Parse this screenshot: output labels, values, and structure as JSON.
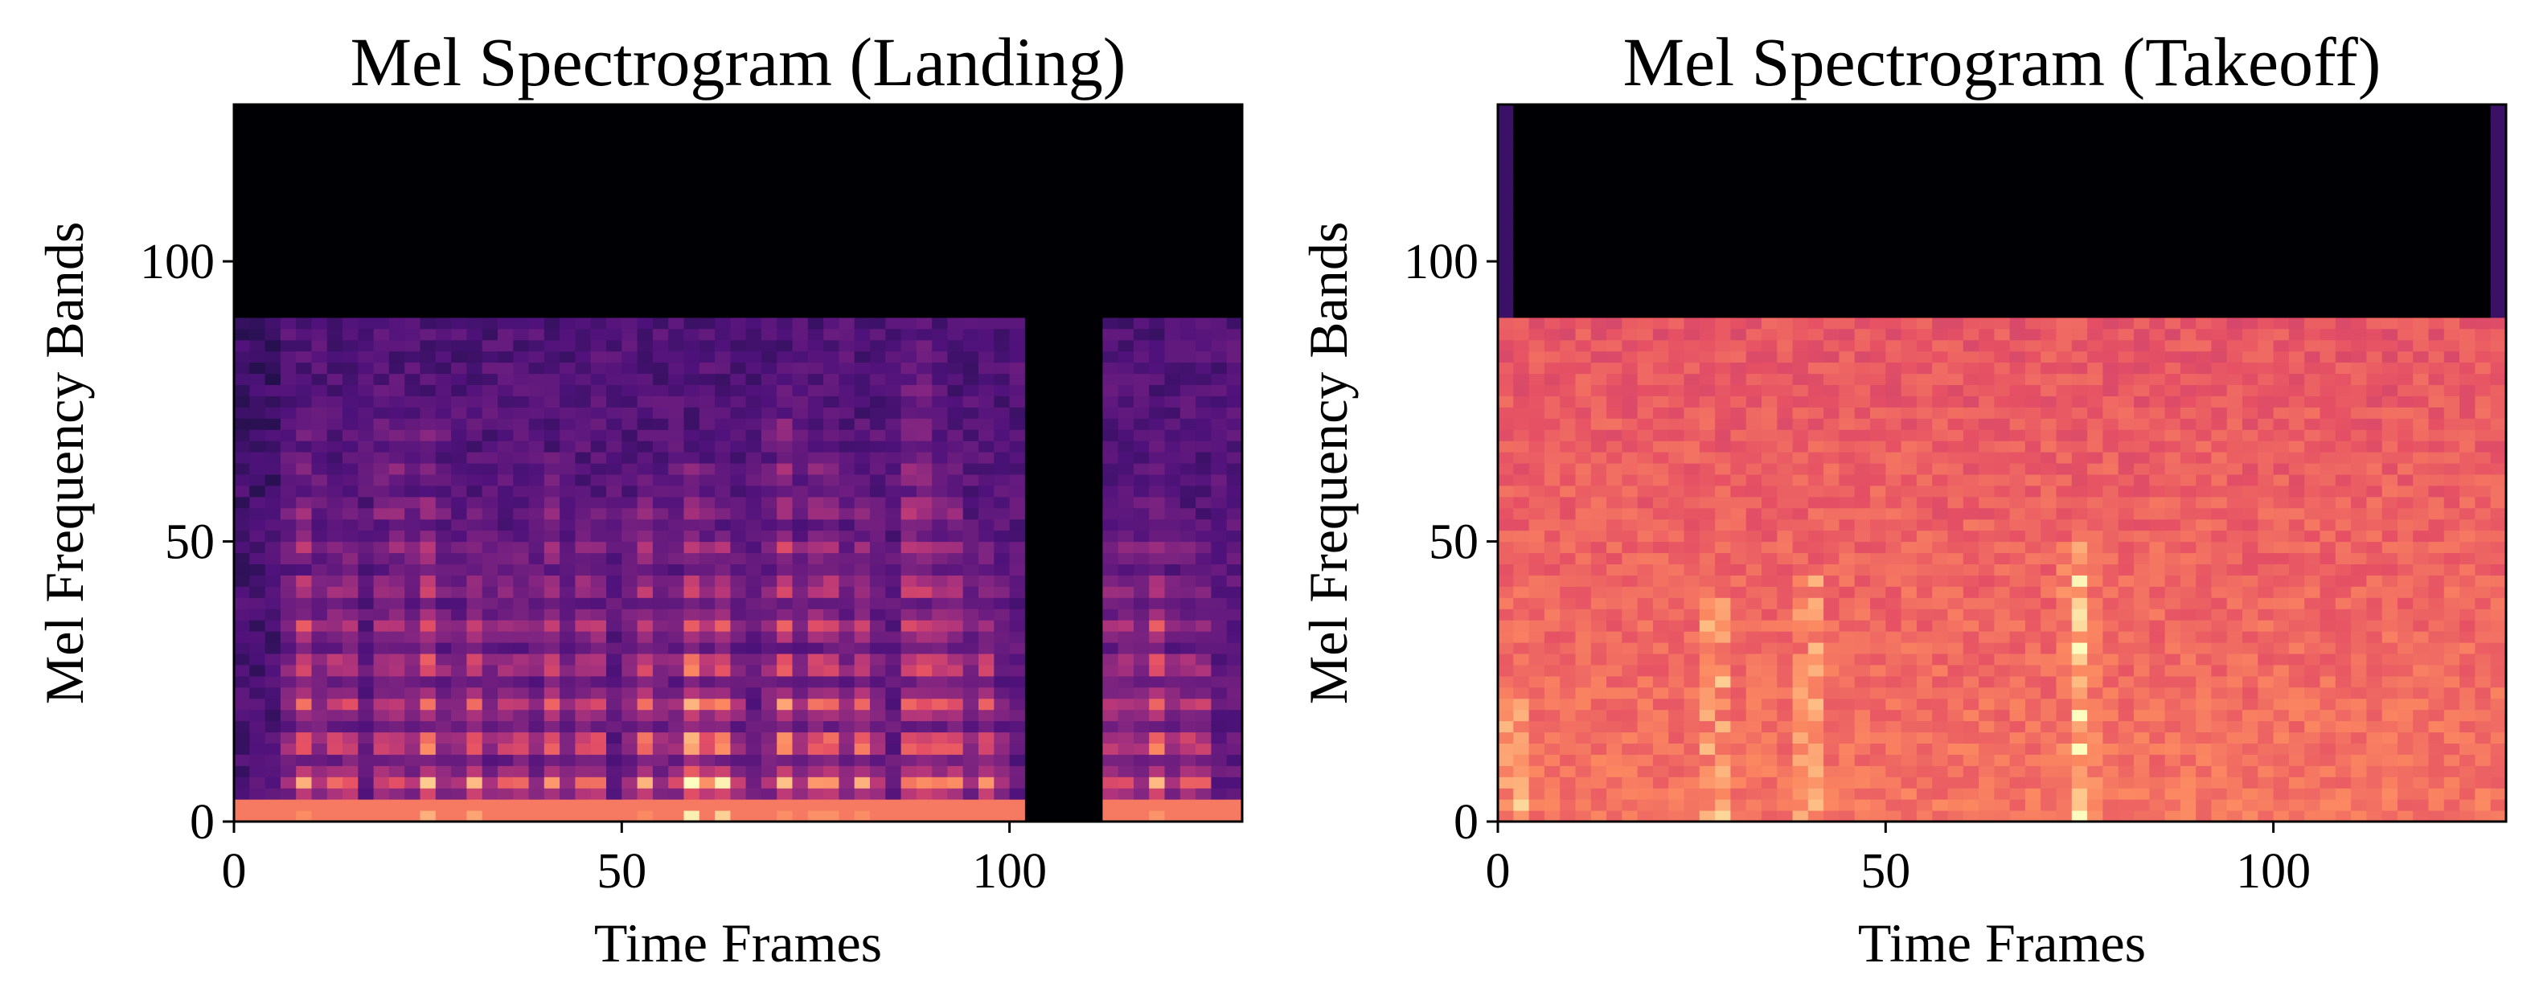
{
  "chart_data": [
    {
      "type": "heatmap",
      "title": "Mel Spectrogram (Landing)",
      "xlabel": "Time Frames",
      "ylabel": "Mel Frequency Bands",
      "xlim": [
        0,
        130
      ],
      "ylim": [
        0,
        128
      ],
      "x_ticks": [
        0,
        50,
        100
      ],
      "y_ticks": [
        0,
        50,
        100
      ],
      "colormap": "magma",
      "energy_band_max": 90,
      "silent_gap_frames": [
        103,
        111
      ],
      "harmonic_bursts": [
        {
          "frame": 9,
          "top_band": 72,
          "strength": 0.55
        },
        {
          "frame": 14,
          "top_band": 62,
          "strength": 0.6
        },
        {
          "frame": 20,
          "top_band": 78,
          "strength": 0.5
        },
        {
          "frame": 25,
          "top_band": 70,
          "strength": 0.62
        },
        {
          "frame": 31,
          "top_band": 58,
          "strength": 0.58
        },
        {
          "frame": 36,
          "top_band": 55,
          "strength": 0.55
        },
        {
          "frame": 41,
          "top_band": 66,
          "strength": 0.5
        },
        {
          "frame": 46,
          "top_band": 60,
          "strength": 0.66
        },
        {
          "frame": 53,
          "top_band": 62,
          "strength": 0.6
        },
        {
          "frame": 59,
          "top_band": 65,
          "strength": 0.8
        },
        {
          "frame": 63,
          "top_band": 58,
          "strength": 0.72
        },
        {
          "frame": 71,
          "top_band": 82,
          "strength": 0.62
        },
        {
          "frame": 76,
          "top_band": 70,
          "strength": 0.78
        },
        {
          "frame": 81,
          "top_band": 62,
          "strength": 0.55
        },
        {
          "frame": 88,
          "top_band": 88,
          "strength": 0.72
        },
        {
          "frame": 92,
          "top_band": 68,
          "strength": 0.68
        },
        {
          "frame": 97,
          "top_band": 55,
          "strength": 0.5
        },
        {
          "frame": 114,
          "top_band": 60,
          "strength": 0.5
        },
        {
          "frame": 119,
          "top_band": 65,
          "strength": 0.6
        },
        {
          "frame": 124,
          "top_band": 55,
          "strength": 0.55
        }
      ]
    },
    {
      "type": "heatmap",
      "title": "Mel Spectrogram (Takeoff)",
      "xlabel": "Time Frames",
      "ylabel": "Mel Frequency Bands",
      "xlim": [
        0,
        130
      ],
      "ylim": [
        0,
        128
      ],
      "x_ticks": [
        0,
        50,
        100
      ],
      "y_ticks": [
        0,
        50,
        100
      ],
      "colormap": "magma",
      "energy_band_max": 90,
      "harmonic_bursts": [
        {
          "frame": 2,
          "top_band": 25,
          "strength": 0.3
        },
        {
          "frame": 28,
          "top_band": 40,
          "strength": 0.3
        },
        {
          "frame": 40,
          "top_band": 45,
          "strength": 0.25
        },
        {
          "frame": 75,
          "top_band": 50,
          "strength": 0.35
        }
      ]
    }
  ]
}
